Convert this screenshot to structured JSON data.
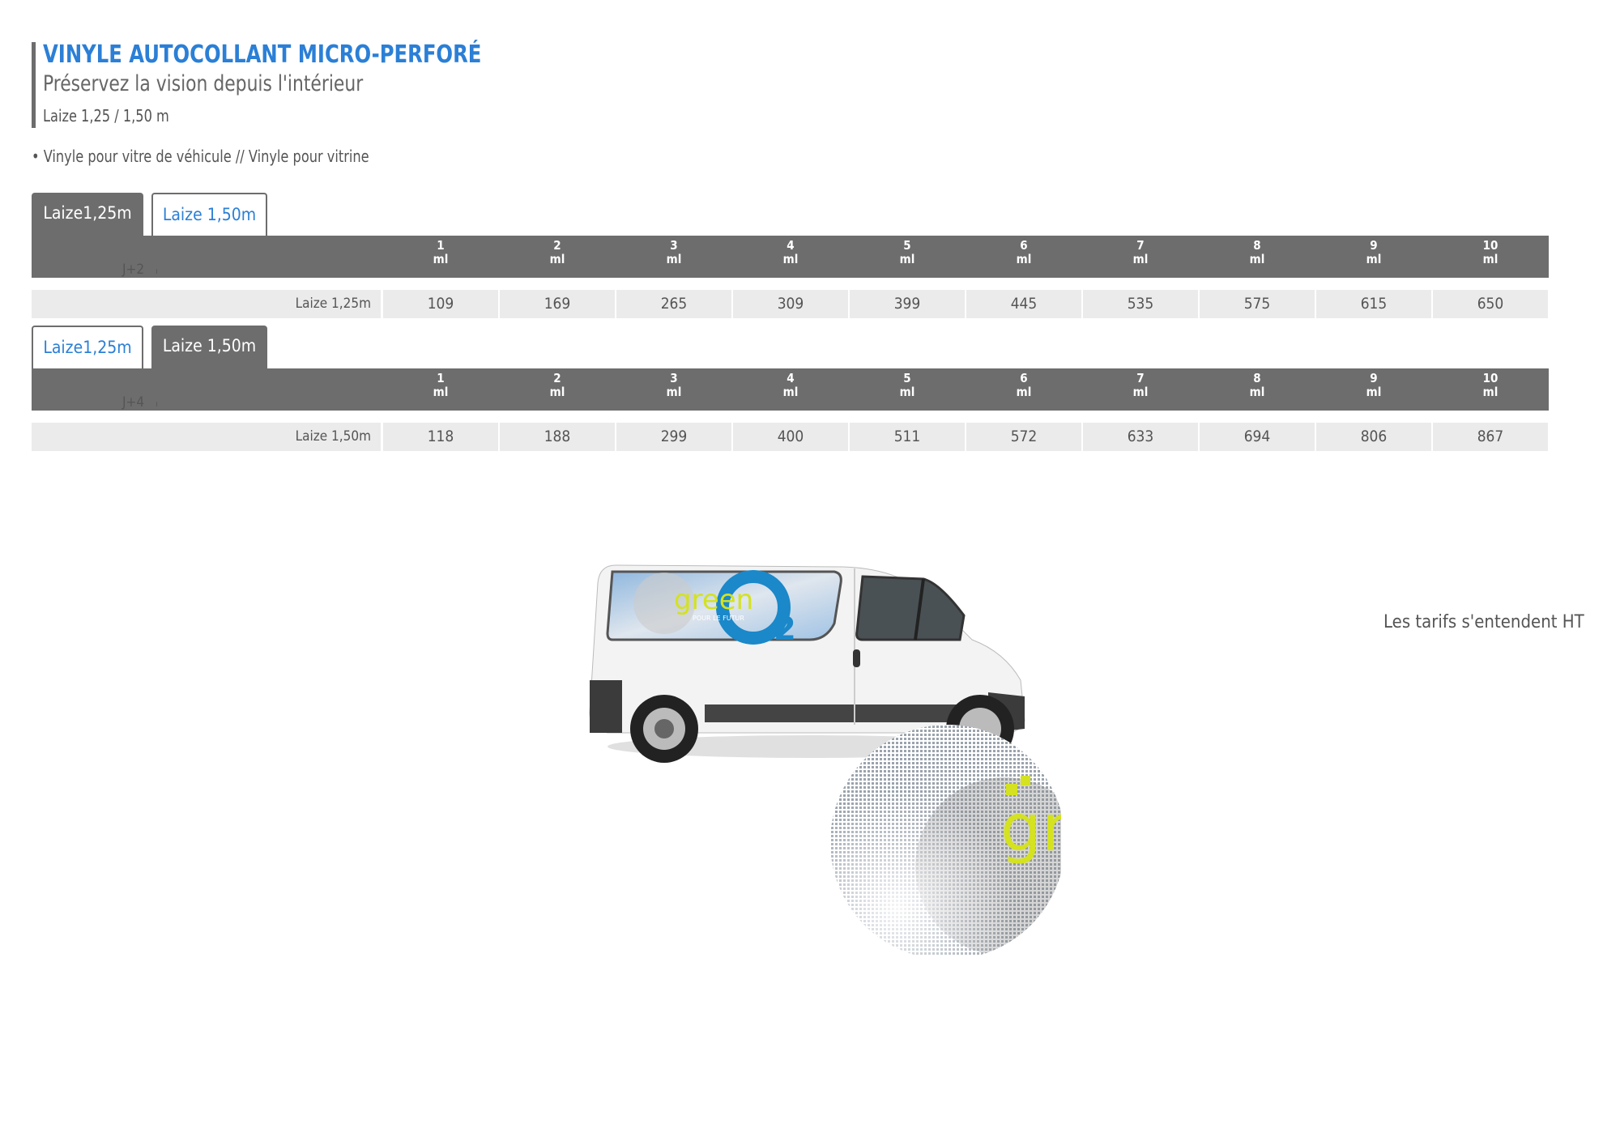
{
  "header": {
    "title": "VINYLE AUTOCOLLANT MICRO-PERFORÉ",
    "subtitle": "Préservez la vision depuis l'intérieur",
    "laize": "Laize 1,25 / 1,50 m",
    "bullet": "Vinyle pour vitre de véhicule // Vinyle pour vitrine"
  },
  "colors": {
    "accent": "#2b7fd6",
    "header_gray": "#6d6d6d",
    "row_gray": "#ebebeb"
  },
  "tables": [
    {
      "tabs": [
        {
          "label": "Laize1,25m",
          "active": true
        },
        {
          "label": "Laize 1,50m",
          "active": false
        }
      ],
      "columns": [
        {
          "qty": "1",
          "unit": "ml"
        },
        {
          "qty": "2",
          "unit": "ml"
        },
        {
          "qty": "3",
          "unit": "ml"
        },
        {
          "qty": "4",
          "unit": "ml"
        },
        {
          "qty": "5",
          "unit": "ml"
        },
        {
          "qty": "6",
          "unit": "ml"
        },
        {
          "qty": "7",
          "unit": "ml"
        },
        {
          "qty": "8",
          "unit": "ml"
        },
        {
          "qty": "9",
          "unit": "ml"
        },
        {
          "qty": "10",
          "unit": "ml"
        }
      ],
      "delay": "J+2",
      "row": {
        "label": "Laize 1,25m",
        "prices": [
          "109",
          "169",
          "265",
          "309",
          "399",
          "445",
          "535",
          "575",
          "615",
          "650"
        ]
      }
    },
    {
      "tabs": [
        {
          "label": "Laize1,25m",
          "active": false
        },
        {
          "label": "Laize 1,50m",
          "active": true
        }
      ],
      "columns": [
        {
          "qty": "1",
          "unit": "ml"
        },
        {
          "qty": "2",
          "unit": "ml"
        },
        {
          "qty": "3",
          "unit": "ml"
        },
        {
          "qty": "4",
          "unit": "ml"
        },
        {
          "qty": "5",
          "unit": "ml"
        },
        {
          "qty": "6",
          "unit": "ml"
        },
        {
          "qty": "7",
          "unit": "ml"
        },
        {
          "qty": "8",
          "unit": "ml"
        },
        {
          "qty": "9",
          "unit": "ml"
        },
        {
          "qty": "10",
          "unit": "ml"
        }
      ],
      "delay": "J+4",
      "row": {
        "label": "Laize 1,50m",
        "prices": [
          "118",
          "188",
          "299",
          "400",
          "511",
          "572",
          "633",
          "694",
          "806",
          "867"
        ]
      }
    }
  ],
  "footer_note": "Les tarifs s'entendent HT",
  "illustration": {
    "logo_text": "green",
    "logo_tagline": "POUR LE FUTUR",
    "logo_o2": "2"
  }
}
